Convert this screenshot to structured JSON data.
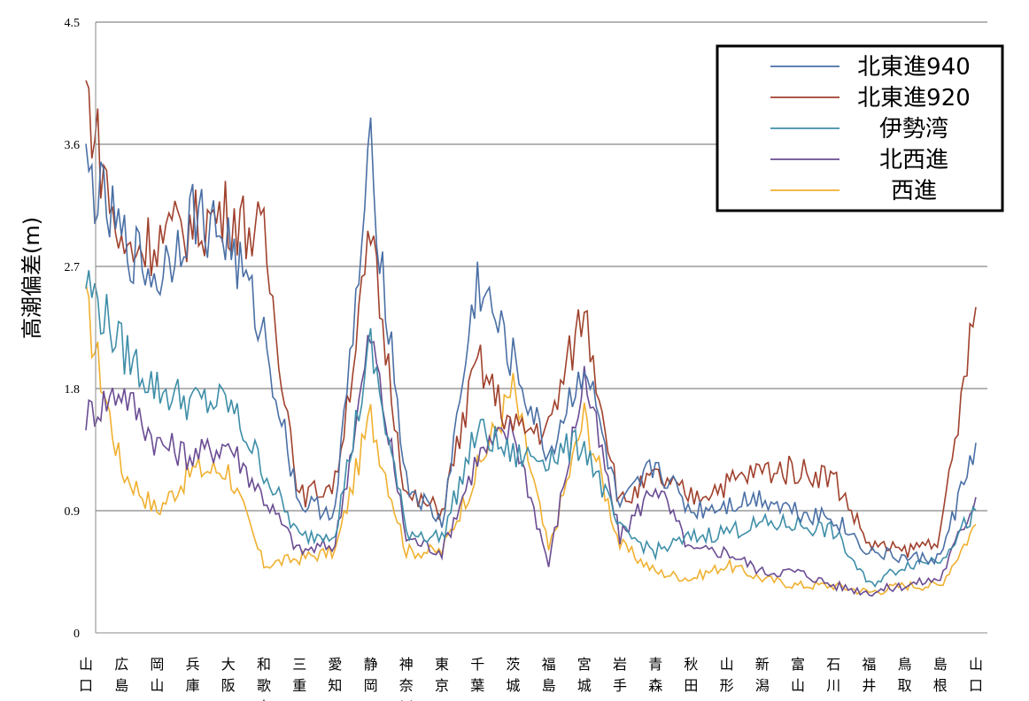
{
  "chart_data": {
    "type": "line",
    "title": "",
    "xlabel": "",
    "ylabel": "高潮偏差(m)",
    "ylim": [
      0,
      4.5
    ],
    "yticks": [
      "0",
      "0.9",
      "1.8",
      "2.7",
      "3.6",
      "4.5"
    ],
    "grid": true,
    "legend_position": "top-right",
    "categories": [
      "山口",
      "広島",
      "岡山",
      "兵庫",
      "大阪",
      "和歌山",
      "三重",
      "愛知",
      "静岡",
      "神奈川",
      "東京",
      "千葉",
      "茨城",
      "福島",
      "宮城",
      "岩手",
      "青森",
      "秋田",
      "山形",
      "新潟",
      "富山",
      "石川",
      "福井",
      "鳥取",
      "島根",
      "山口"
    ],
    "series": [
      {
        "name": "北東進940",
        "color": "#4a6fa5",
        "values": [
          3.4,
          2.9,
          2.6,
          3.1,
          2.9,
          2.2,
          0.95,
          0.9,
          3.5,
          1.1,
          0.8,
          2.6,
          2.0,
          1.3,
          2.0,
          0.9,
          1.25,
          0.9,
          0.95,
          1.0,
          0.9,
          0.85,
          0.6,
          0.55,
          0.55,
          1.4
        ]
      },
      {
        "name": "北東進920",
        "color": "#a0412d",
        "values": [
          4.0,
          2.8,
          2.9,
          3.0,
          3.1,
          2.9,
          1.0,
          1.1,
          2.9,
          1.0,
          0.9,
          2.0,
          1.5,
          1.5,
          2.4,
          0.95,
          1.15,
          1.0,
          1.1,
          1.2,
          1.2,
          1.15,
          0.65,
          0.6,
          0.7,
          2.4
        ]
      },
      {
        "name": "伊勢湾",
        "color": "#3e8ea8",
        "values": [
          2.6,
          2.1,
          1.8,
          1.7,
          1.7,
          1.2,
          0.7,
          0.75,
          2.1,
          0.75,
          0.7,
          1.5,
          1.3,
          1.3,
          1.4,
          0.75,
          0.6,
          0.7,
          0.75,
          0.8,
          0.8,
          0.75,
          0.35,
          0.5,
          0.55,
          0.9
        ]
      },
      {
        "name": "北西進",
        "color": "#6a4c93",
        "values": [
          1.6,
          1.8,
          1.4,
          1.3,
          1.4,
          1.0,
          0.6,
          0.65,
          2.2,
          0.7,
          0.6,
          1.3,
          1.5,
          0.5,
          1.9,
          0.7,
          1.1,
          0.6,
          0.6,
          0.45,
          0.45,
          0.35,
          0.3,
          0.35,
          0.4,
          1.0
        ]
      },
      {
        "name": "西進",
        "color": "#f0b030",
        "values": [
          2.4,
          1.2,
          0.9,
          1.2,
          1.2,
          0.5,
          0.55,
          0.6,
          1.6,
          0.6,
          0.6,
          1.2,
          1.8,
          0.6,
          1.6,
          0.65,
          0.45,
          0.4,
          0.5,
          0.4,
          0.35,
          0.35,
          0.3,
          0.35,
          0.35,
          0.8
        ]
      }
    ]
  }
}
